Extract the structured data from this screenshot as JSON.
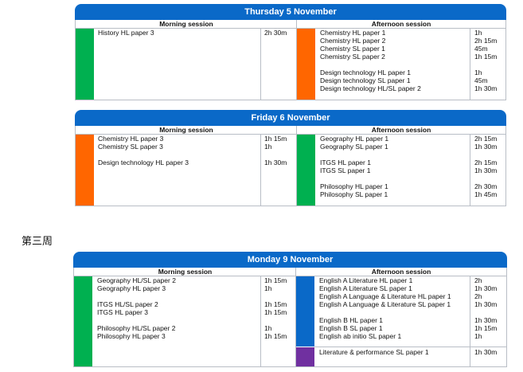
{
  "session_labels": {
    "morning": "Morning session",
    "afternoon": "Afternoon session"
  },
  "week_label": "第三周",
  "colors": {
    "banner": "#0a69c8",
    "green": "#00b050",
    "orange": "#ff6600",
    "blue": "#0a69c8",
    "purple": "#7030a0"
  },
  "days": [
    {
      "title": "Thursday 5 November",
      "morning": {
        "bar_color": "green",
        "exams": [
          {
            "name": "History HL paper 3",
            "time": "2h 30m"
          }
        ]
      },
      "afternoon": {
        "bar_color": "orange",
        "exams": [
          {
            "name": "Chemistry HL paper 1",
            "time": "1h"
          },
          {
            "name": "Chemistry HL paper 2",
            "time": "2h 15m"
          },
          {
            "name": "Chemistry SL paper 1",
            "time": "45m"
          },
          {
            "name": "Chemistry SL paper 2",
            "time": "1h 15m"
          },
          {
            "name": "",
            "time": ""
          },
          {
            "name": "Design technology HL paper 1",
            "time": "1h"
          },
          {
            "name": "Design technology SL paper 1",
            "time": "45m"
          },
          {
            "name": "Design technology HL/SL paper 2",
            "time": "1h 30m"
          }
        ]
      }
    },
    {
      "title": "Friday 6 November",
      "morning": {
        "bar_color": "orange",
        "exams": [
          {
            "name": "Chemistry HL paper 3",
            "time": "1h 15m"
          },
          {
            "name": "Chemistry SL paper 3",
            "time": "1h"
          },
          {
            "name": "",
            "time": ""
          },
          {
            "name": "Design technology HL paper 3",
            "time": "1h 30m"
          }
        ]
      },
      "afternoon": {
        "bar_color": "green",
        "exams": [
          {
            "name": "Geography HL paper 1",
            "time": "2h 15m"
          },
          {
            "name": "Geography SL paper 1",
            "time": "1h 30m"
          },
          {
            "name": "",
            "time": ""
          },
          {
            "name": "ITGS HL paper 1",
            "time": "2h 15m"
          },
          {
            "name": "ITGS SL paper 1",
            "time": "1h 30m"
          },
          {
            "name": "",
            "time": ""
          },
          {
            "name": "Philosophy HL paper 1",
            "time": "2h 30m"
          },
          {
            "name": "Philosophy SL paper 1",
            "time": "1h 45m"
          }
        ]
      }
    },
    {
      "title": "Monday 9 November",
      "morning": {
        "bar_color": "green",
        "exams": [
          {
            "name": "Geography HL/SL paper 2",
            "time": "1h 15m"
          },
          {
            "name": "Geography HL paper 3",
            "time": "1h"
          },
          {
            "name": "",
            "time": ""
          },
          {
            "name": "ITGS HL/SL paper 2",
            "time": "1h 15m"
          },
          {
            "name": "ITGS HL paper 3",
            "time": "1h 15m"
          },
          {
            "name": "",
            "time": ""
          },
          {
            "name": "Philosophy HL/SL paper 2",
            "time": "1h"
          },
          {
            "name": "Philosophy HL paper 3",
            "time": "1h 15m"
          }
        ]
      },
      "afternoon": {
        "bar_color": "blue",
        "exams": [
          {
            "name": "English A Literature HL paper 1",
            "time": "2h"
          },
          {
            "name": "English A Literature SL paper 1",
            "time": "1h 30m"
          },
          {
            "name": "English A Language & Literature HL paper 1",
            "time": "2h"
          },
          {
            "name": "English A Language & Literature SL paper 1",
            "time": "1h 30m"
          },
          {
            "name": "",
            "time": ""
          },
          {
            "name": "English B HL paper 1",
            "time": "1h 30m"
          },
          {
            "name": "English B SL paper 1",
            "time": "1h 15m"
          },
          {
            "name": "English ab initio SL paper 1",
            "time": "1h"
          }
        ],
        "extra": {
          "bar_color": "purple",
          "exams": [
            {
              "name": "Literature & performance SL paper 1",
              "time": "1h 30m"
            }
          ]
        }
      }
    }
  ]
}
